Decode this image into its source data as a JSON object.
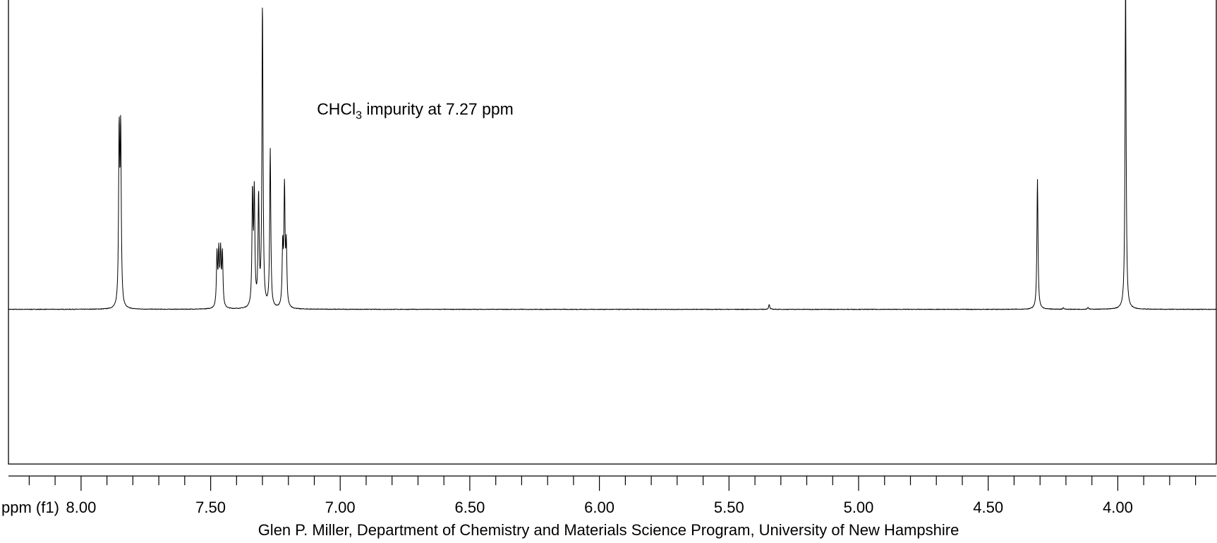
{
  "chart_data": {
    "type": "line",
    "title": "",
    "xlabel": "ppm (f1)",
    "ylabel": "",
    "x_reversed": true,
    "xlim": [
      8.28,
      3.62
    ],
    "ylim": [
      -0.5,
      1.0
    ],
    "x_ticks": [
      8.0,
      7.5,
      7.0,
      6.5,
      6.0,
      5.5,
      5.0,
      4.5,
      4.0
    ],
    "x_tick_labels": [
      "8.00",
      "7.50",
      "7.00",
      "6.50",
      "6.00",
      "5.50",
      "5.00",
      "4.50",
      "4.00"
    ],
    "minor_tick_step": 0.1,
    "grid": false,
    "legend": "none",
    "line_color": "#000000",
    "annotations": [
      {
        "text_main": "CHCl",
        "text_sub": "3",
        "text_rest": " impurity at 7.27 ppm",
        "x": 7.09,
        "y": 0.63
      }
    ],
    "peaks": [
      {
        "center": 7.85,
        "height": 0.55,
        "multiplicity": "d",
        "spacing": 0.006
      },
      {
        "center": 7.465,
        "height": 0.17,
        "multiplicity": "m",
        "spacing": 0.007
      },
      {
        "center": 7.335,
        "height": 0.36,
        "multiplicity": "d",
        "spacing": 0.007
      },
      {
        "center": 7.3,
        "height": 0.98,
        "multiplicity": "s",
        "spacing": 0
      },
      {
        "center": 7.315,
        "height": 0.35,
        "multiplicity": "s",
        "spacing": 0
      },
      {
        "center": 7.27,
        "height": 0.51,
        "multiplicity": "s",
        "spacing": 0
      },
      {
        "center": 7.215,
        "height": 0.38,
        "multiplicity": "t",
        "spacing": 0.007
      },
      {
        "center": 5.345,
        "height": 0.015,
        "multiplicity": "s",
        "spacing": 0
      },
      {
        "center": 4.31,
        "height": 0.42,
        "multiplicity": "s",
        "spacing": 0
      },
      {
        "center": 4.21,
        "height": 0.005,
        "multiplicity": "s",
        "spacing": 0
      },
      {
        "center": 4.115,
        "height": 0.006,
        "multiplicity": "s",
        "spacing": 0
      },
      {
        "center": 3.97,
        "height": 1.05,
        "multiplicity": "s",
        "spacing": 0
      }
    ]
  },
  "footer": {
    "credit": "Glen P. Miller, Department of Chemistry and Materials Science Program, University of New Hampshire"
  }
}
